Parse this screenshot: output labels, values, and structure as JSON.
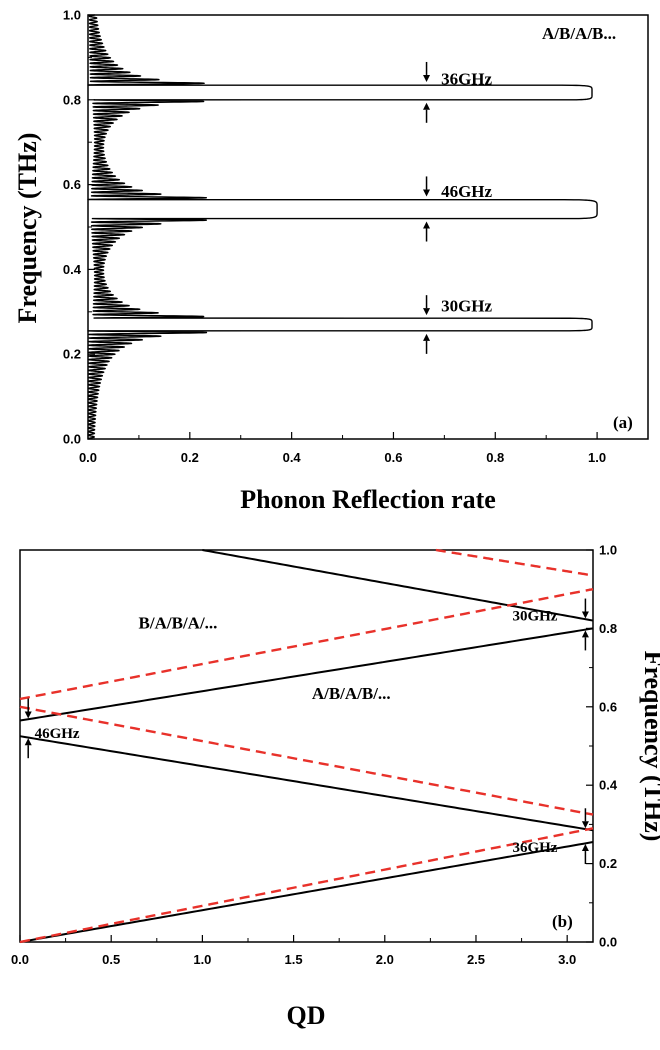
{
  "chart_data": [
    {
      "type": "line",
      "panel_label": "(a)",
      "xlabel": "Phonon Reflection rate",
      "ylabel": "Frequency (THz)",
      "xlim": [
        0.0,
        1.1
      ],
      "ylim": [
        0.0,
        1.0
      ],
      "x_ticks": [
        "0.0",
        "0.2",
        "0.4",
        "0.6",
        "0.8",
        "1.0"
      ],
      "y_ticks": [
        "0.0",
        "0.2",
        "0.4",
        "0.6",
        "0.8",
        "1.0"
      ],
      "legend_text": "A/B/A/B...",
      "series": [
        {
          "color": "#000000",
          "stopbands": [
            {
              "label": "30GHz",
              "low": 0.255,
              "high": 0.285,
              "center": 0.27,
              "peak": 0.99
            },
            {
              "label": "46GHz",
              "low": 0.52,
              "high": 0.565,
              "center": 0.542,
              "peak": 1.0
            },
            {
              "label": "36GHz",
              "low": 0.8,
              "high": 0.835,
              "center": 0.817,
              "peak": 0.99
            }
          ]
        }
      ],
      "annotations": [
        {
          "text": "36GHz",
          "x": 0.67,
          "y": 0.85
        },
        {
          "text": "46GHz",
          "x": 0.67,
          "y": 0.585
        },
        {
          "text": "30GHz",
          "x": 0.67,
          "y": 0.315
        }
      ]
    },
    {
      "type": "line",
      "panel_label": "(b)",
      "xlabel": "QD",
      "ylabel": "Frequency (THz)",
      "xlim": [
        0.0,
        3.14159
      ],
      "ylim": [
        0.0,
        1.0
      ],
      "x_ticks": [
        "0.0",
        "0.5",
        "1.0",
        "1.5",
        "2.0",
        "2.5",
        "3.0"
      ],
      "y_ticks": [
        "0.0",
        "0.2",
        "0.4",
        "0.6",
        "0.8",
        "1.0"
      ],
      "series": [
        {
          "name": "A/B/A/B/...",
          "color": "#000000",
          "style": "solid",
          "branches": [
            {
              "x": [
                0.0,
                3.14159
              ],
              "y": [
                0.0,
                0.255
              ]
            },
            {
              "x": [
                0.0,
                3.14159
              ],
              "y": [
                0.525,
                0.285
              ]
            },
            {
              "x": [
                0.0,
                3.14159
              ],
              "y": [
                0.565,
                0.8
              ]
            },
            {
              "x": [
                1.0,
                3.14159
              ],
              "y": [
                1.0,
                0.82
              ]
            }
          ]
        },
        {
          "name": "B/A/B/A/...",
          "color": "#e8312a",
          "style": "dashed",
          "branches": [
            {
              "x": [
                0.0,
                3.14159
              ],
              "y": [
                0.0,
                0.29
              ]
            },
            {
              "x": [
                0.0,
                3.14159
              ],
              "y": [
                0.6,
                0.325
              ]
            },
            {
              "x": [
                0.0,
                3.14159
              ],
              "y": [
                0.62,
                0.9
              ]
            },
            {
              "x": [
                2.28,
                3.14159
              ],
              "y": [
                1.0,
                0.935
              ]
            }
          ]
        }
      ],
      "annotations": [
        {
          "text": "B/A/B/A/...",
          "x": 0.65,
          "y": 0.8
        },
        {
          "text": "A/B/A/B/...",
          "x": 1.6,
          "y": 0.62
        },
        {
          "text": "46GHz",
          "x": 0.08,
          "y": 0.52
        },
        {
          "text": "30GHz",
          "x": 2.7,
          "y": 0.82
        },
        {
          "text": "36GHz",
          "x": 2.7,
          "y": 0.23
        }
      ]
    }
  ]
}
